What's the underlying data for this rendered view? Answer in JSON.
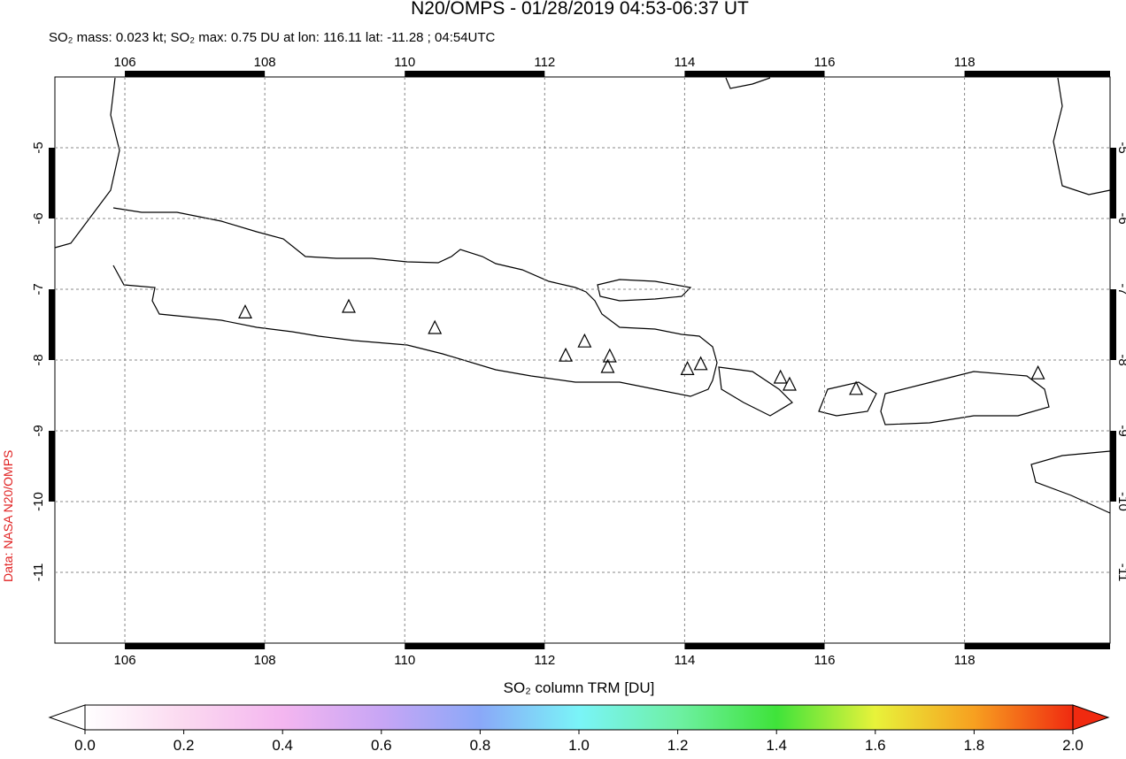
{
  "title": "N20/OMPS - 01/28/2019 04:53-06:37 UT",
  "subtitle": "SO₂ mass: 0.023 kt; SO₂ max: 0.75 DU at lon: 116.11 lat: -11.28 ; 04:54UTC",
  "side_label": "Data: NASA N20/OMPS",
  "map": {
    "xlim": [
      105.0,
      120.08
    ],
    "ylim": [
      -12.0,
      -4.0
    ],
    "xticks": [
      106,
      108,
      110,
      112,
      114,
      116,
      118
    ],
    "yticks": [
      -5,
      -6,
      -7,
      -8,
      -9,
      -10,
      -11
    ],
    "grid": true,
    "volcanoes": {
      "lon": [
        107.72,
        109.2,
        110.43,
        112.3,
        112.57,
        112.93,
        112.9,
        114.04,
        114.23,
        115.37,
        115.5,
        116.45,
        119.05
      ],
      "lat": [
        -7.33,
        -7.25,
        -7.55,
        -7.94,
        -7.74,
        -7.95,
        -8.1,
        -8.13,
        -8.06,
        -8.25,
        -8.35,
        -8.41,
        -8.19
      ]
    }
  },
  "colorbar": {
    "label": "SO₂ column TRM [DU]",
    "lim": [
      0,
      2
    ],
    "ticks": [
      {
        "value": 0,
        "label": "0.0"
      },
      {
        "value": 0.2,
        "label": "0.2"
      },
      {
        "value": 0.4,
        "label": "0.4"
      },
      {
        "value": 0.6,
        "label": "0.6"
      },
      {
        "value": 0.8,
        "label": "0.8"
      },
      {
        "value": 1.0,
        "label": "1.0"
      },
      {
        "value": 1.2,
        "label": "1.2"
      },
      {
        "value": 1.4,
        "label": "1.4"
      },
      {
        "value": 1.6,
        "label": "1.6"
      },
      {
        "value": 1.8,
        "label": "1.8"
      },
      {
        "value": 2.0,
        "label": "2.0"
      }
    ]
  }
}
